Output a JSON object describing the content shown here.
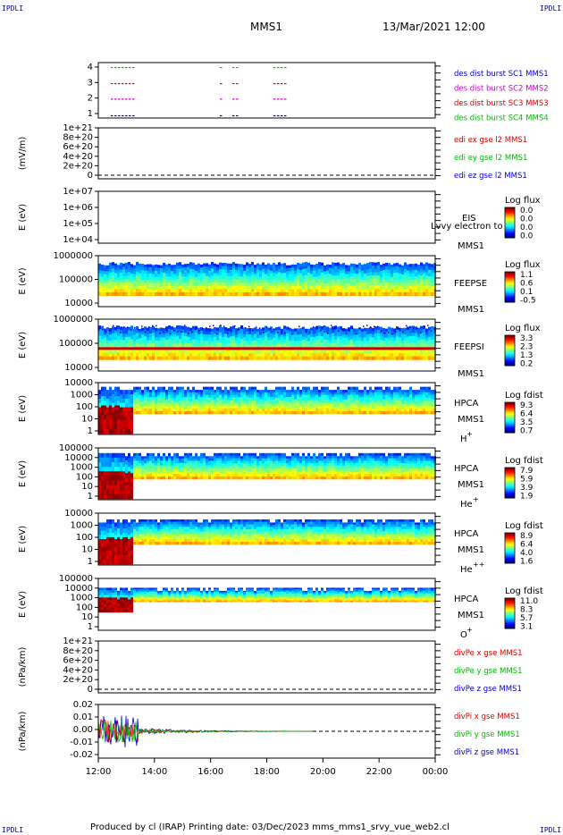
{
  "corner_label": "IPDLI",
  "header": {
    "spacecraft": "MMS1",
    "datetime": "13/Mar/2021 12:00"
  },
  "footer": "Produced by cl (IRAP)   Printing date: 03/Dec/2023   mms_mms1_srvy_vue_web2.cl",
  "colors": {
    "red": "#dd0000",
    "green": "#00bb00",
    "blue": "#0000cc",
    "magenta": "#cc00cc",
    "black": "#000000"
  },
  "chart_data": [
    {
      "type": "scatter",
      "panel": "burst",
      "yticks": [
        "4",
        "3",
        "2",
        "1"
      ],
      "legend": [
        {
          "name": "des dist burst SC1 MMS1",
          "color": "#0000cc"
        },
        {
          "name": "des dist burst SC2 MMS2",
          "color": "#cc00cc"
        },
        {
          "name": "des dist burst SC3 MMS3",
          "color": "#dd0000"
        },
        {
          "name": "des dist burst SC4 MMS4",
          "color": "#00bb00"
        }
      ]
    },
    {
      "type": "line",
      "panel": "edi",
      "ylabel": "(mV/m)",
      "yticks": [
        "1e+21",
        "8e+20",
        "6e+20",
        "4e+20",
        "2e+20",
        "0"
      ],
      "legend": [
        {
          "name": "edi ex gse l2 MMS1",
          "color": "#dd0000"
        },
        {
          "name": "edi ey gse l2 MMS1",
          "color": "#00bb00"
        },
        {
          "name": "edi ez gse l2 MMS1",
          "color": "#0000cc"
        }
      ]
    },
    {
      "type": "heatmap",
      "panel": "eis",
      "ylabel": "E (eV)",
      "yticks": [
        "1e+07",
        "1e+06",
        "1e+05",
        "1e+04"
      ],
      "instrument": "EIS",
      "sc": "MMS1",
      "overlay_text": "Lvvy electron to",
      "cbar_title": "Log flux",
      "cbar_ticks": [
        "0.0",
        "0.0",
        "0.0",
        "0.0"
      ]
    },
    {
      "type": "heatmap",
      "panel": "feepse",
      "ylabel": "E (eV)",
      "yticks": [
        "1000000",
        "100000",
        "10000"
      ],
      "instrument": "FEEPSE",
      "sc": "MMS1",
      "cbar_title": "Log flux",
      "cbar_ticks": [
        "1.1",
        "0.6",
        "0.1",
        "-0.5"
      ]
    },
    {
      "type": "heatmap",
      "panel": "feepsi",
      "ylabel": "E (eV)",
      "yticks": [
        "1000000",
        "100000",
        "10000"
      ],
      "instrument": "FEEPSI",
      "sc": "MMS1",
      "cbar_title": "Log flux",
      "cbar_ticks": [
        "3.3",
        "2.3",
        "1.3",
        "0.2"
      ]
    },
    {
      "type": "heatmap",
      "panel": "hpca_hplus",
      "ylabel": "E (eV)",
      "yticks": [
        "10000",
        "1000",
        "100",
        "10",
        "1"
      ],
      "instrument": "HPCA",
      "sc": "MMS1",
      "species": "H",
      "charge": "+",
      "cbar_title": "Log fdist",
      "cbar_ticks": [
        "9.3",
        "6.4",
        "3.5",
        "0.7"
      ]
    },
    {
      "type": "heatmap",
      "panel": "hpca_heplus",
      "ylabel": "E (eV)",
      "yticks": [
        "100000",
        "10000",
        "1000",
        "100",
        "10",
        "1"
      ],
      "instrument": "HPCA",
      "sc": "MMS1",
      "species": "He",
      "charge": "+",
      "cbar_title": "Log fdist",
      "cbar_ticks": [
        "7.9",
        "5.9",
        "3.9",
        "1.9"
      ]
    },
    {
      "type": "heatmap",
      "panel": "hpca_hepp",
      "ylabel": "E (eV)",
      "yticks": [
        "10000",
        "1000",
        "100",
        "10",
        "1"
      ],
      "instrument": "HPCA",
      "sc": "MMS1",
      "species": "He",
      "charge": "++",
      "cbar_title": "Log fdist",
      "cbar_ticks": [
        "8.9",
        "6.4",
        "4.0",
        "1.6"
      ]
    },
    {
      "type": "heatmap",
      "panel": "hpca_oplus",
      "ylabel": "E (eV)",
      "yticks": [
        "100000",
        "10000",
        "1000",
        "100",
        "10",
        "1"
      ],
      "instrument": "HPCA",
      "sc": "MMS1",
      "species": "O",
      "charge": "+",
      "cbar_title": "Log fdist",
      "cbar_ticks": [
        "11.0",
        "8.3",
        "5.7",
        "3.1"
      ]
    },
    {
      "type": "line",
      "panel": "divpe",
      "ylabel": "(nPa/km)",
      "yticks": [
        "1e+21",
        "8e+20",
        "6e+20",
        "4e+20",
        "2e+20",
        "0"
      ],
      "legend": [
        {
          "name": "divPe x gse MMS1",
          "color": "#dd0000"
        },
        {
          "name": "divPe y gse MMS1",
          "color": "#00bb00"
        },
        {
          "name": "divPe z gse MMS1",
          "color": "#0000cc"
        }
      ]
    },
    {
      "type": "line",
      "panel": "divpi",
      "ylabel": "(nPa/km)",
      "yticks": [
        "0.02",
        "0.01",
        "0.00",
        "-0.01",
        "-0.02"
      ],
      "ylim": [
        -0.025,
        0.025
      ],
      "legend": [
        {
          "name": "divPi x gse MMS1",
          "color": "#dd0000"
        },
        {
          "name": "divPi y gse MMS1",
          "color": "#00bb00"
        },
        {
          "name": "divPi z gse MMS1",
          "color": "#0000cc"
        }
      ]
    }
  ],
  "x_ticks": [
    "12:00",
    "14:00",
    "16:00",
    "18:00",
    "20:00",
    "22:00",
    "00:00"
  ]
}
